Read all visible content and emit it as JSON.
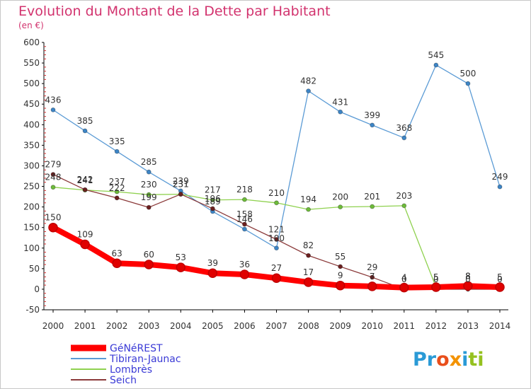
{
  "header": {
    "title": "Evolution du Montant de la Dette par Habitant",
    "subtitle": "(en €)"
  },
  "logo": {
    "text": "Proxiti",
    "colors": [
      "#e94e1b",
      "#f39200",
      "#2a9ad6",
      "#95c11f"
    ]
  },
  "chart_data": {
    "type": "line",
    "title": "Evolution du Montant de la Dette par Habitant",
    "subtitle": "(en €)",
    "xlabel": "",
    "ylabel": "",
    "x": [
      2000,
      2001,
      2002,
      2003,
      2004,
      2005,
      2006,
      2007,
      2008,
      2009,
      2010,
      2011,
      2012,
      2013,
      2014
    ],
    "ylim": [
      -50,
      600
    ],
    "yticks": [
      -50,
      0,
      50,
      100,
      150,
      200,
      250,
      300,
      350,
      400,
      450,
      500,
      550,
      600
    ],
    "grid": false,
    "legend_position": "bottom-left",
    "series": [
      {
        "name": "Tibiran-Jaunac",
        "color": "#5b9bd5",
        "marker_fill": "#3d85c6",
        "values": [
          436,
          385,
          335,
          285,
          239,
          189,
          146,
          100,
          482,
          431,
          399,
          368,
          545,
          500,
          249
        ],
        "labels": [
          "436",
          "385",
          "335",
          "285",
          "239",
          "189",
          "146",
          "100",
          "482",
          "431",
          "399",
          "368",
          "545",
          "500",
          "249"
        ]
      },
      {
        "name": "Lombrès",
        "color": "#8fd14f",
        "marker_fill": "#6dbb3a",
        "values": [
          248,
          241,
          237,
          230,
          231,
          217,
          218,
          210,
          194,
          200,
          201,
          203,
          5,
          8,
          5
        ],
        "labels": [
          "248",
          "241",
          "237",
          "230",
          "231",
          "217",
          "218",
          "210",
          "194",
          "200",
          "201",
          "203",
          "5",
          "8",
          "5"
        ]
      },
      {
        "name": "Seich",
        "color": "#8b3a3a",
        "marker_fill": "#6b1f1f",
        "values": [
          279,
          242,
          222,
          199,
          231,
          196,
          158,
          121,
          82,
          55,
          29,
          0,
          0,
          0,
          0
        ],
        "labels": [
          "279",
          "242",
          "222",
          "199",
          "231",
          "196",
          "158",
          "121",
          "82",
          "55",
          "29",
          "0",
          "0",
          "0",
          "0"
        ]
      },
      {
        "name": "GéNéREST",
        "color": "#ff0000",
        "marker_fill": "#e00000",
        "values": [
          150,
          109,
          63,
          60,
          53,
          39,
          36,
          27,
          17,
          9,
          7,
          4,
          5,
          8,
          5
        ],
        "labels": [
          "150",
          "109",
          "63",
          "60",
          "53",
          "39",
          "36",
          "27",
          "17",
          "9",
          "7",
          "4",
          "5",
          "8",
          "5"
        ]
      }
    ],
    "legend": [
      "GéNéREST",
      "Tibiran-Jaunac",
      "Lombrès",
      "Seich"
    ]
  }
}
